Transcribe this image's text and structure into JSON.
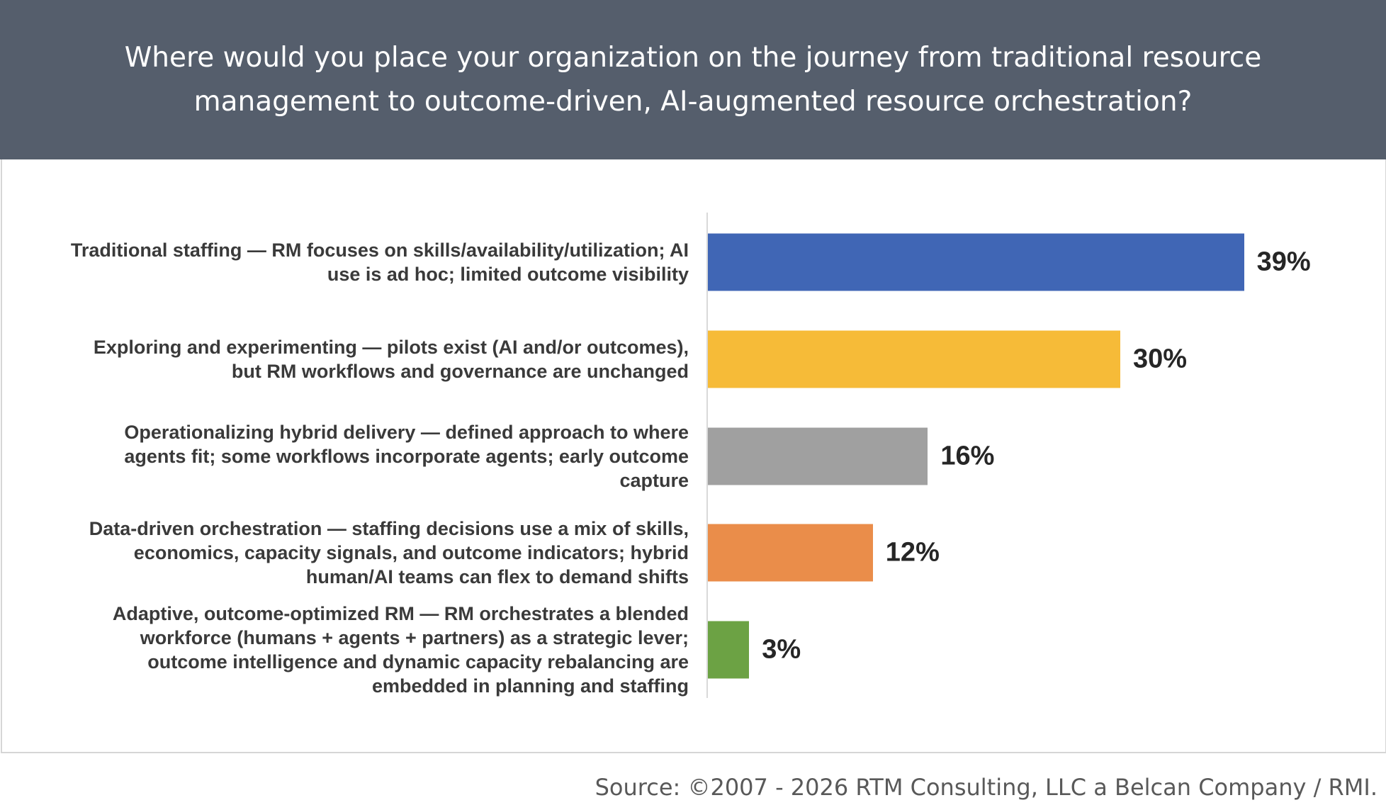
{
  "chart_data": {
    "type": "bar",
    "orientation": "horizontal",
    "title": "Where would you place your organization on the journey from traditional resource management to outcome-driven, AI-augmented resource orchestration?",
    "categories": [
      "Traditional staffing — RM focuses on skills/availability/utilization; AI use is ad hoc; limited outcome visibility",
      "Exploring and experimenting — pilots exist (AI and/or outcomes), but RM workflows and governance are unchanged",
      "Operationalizing hybrid delivery — defined approach to where agents fit; some workflows incorporate agents; early outcome capture",
      "Data-driven orchestration — staffing decisions use a mix of skills, economics, capacity signals, and outcome indicators; hybrid human/AI teams can flex to demand shifts",
      "Adaptive, outcome-optimized RM — RM orchestrates a blended workforce (humans + agents + partners) as a strategic lever; outcome intelligence and dynamic capacity rebalancing are embedded in planning and staffing"
    ],
    "values": [
      39,
      30,
      16,
      12,
      3
    ],
    "value_labels": [
      "39%",
      "30%",
      "16%",
      "12%",
      "3%"
    ],
    "colors": [
      "#4066b5",
      "#f6bb38",
      "#a0a0a0",
      "#ea8d4a",
      "#6ca244"
    ],
    "source": "Source: ©2007 - 2026 RTM Consulting, LLC a Belcan Company / RMI."
  }
}
